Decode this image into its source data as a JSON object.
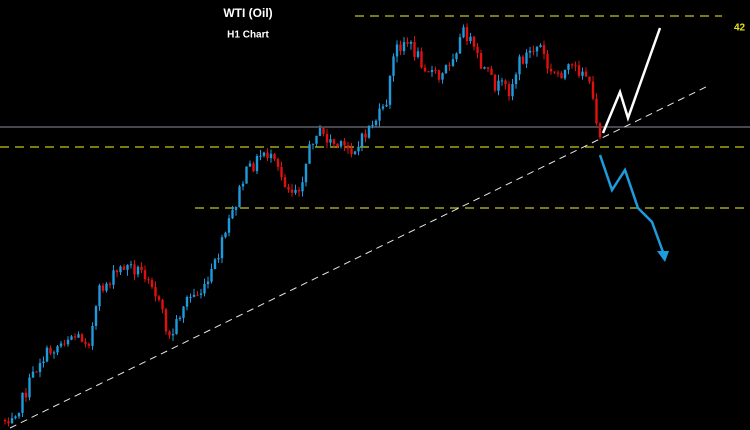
{
  "header": {
    "title": "WTI (Oil)",
    "subtitle": "H1 Chart"
  },
  "levels": {
    "top_label": "42"
  }
}
